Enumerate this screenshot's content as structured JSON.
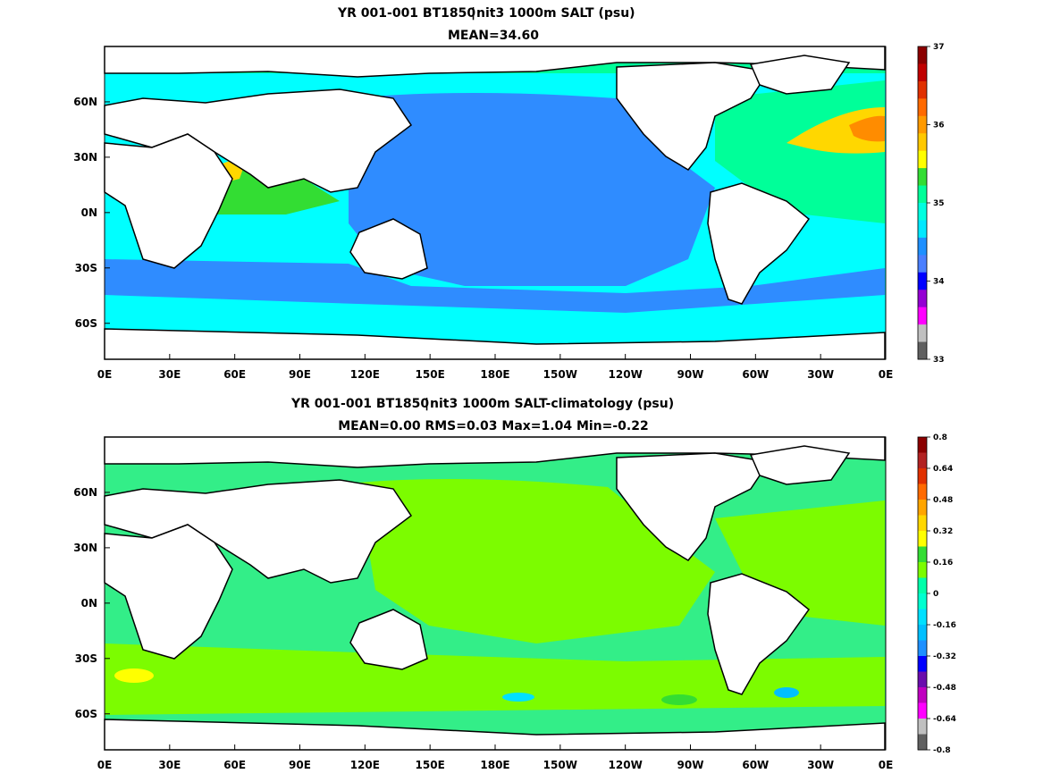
{
  "panels": [
    {
      "title": "YR 001-001 BT1850 nit3 1000m SALT (psu)",
      "title_pre": "YR 001-001 BT1850",
      "title_post": "nit3 1000m SALT (psu)",
      "stats": "MEAN=34.60",
      "colorbar": {
        "labels": [
          "37",
          "36",
          "35",
          "34",
          "33"
        ],
        "colors": [
          "#8b0000",
          "#c00000",
          "#e03000",
          "#ff6a00",
          "#ff9a00",
          "#ffc800",
          "#ffff00",
          "#33dd33",
          "#00ff99",
          "#00ffe0",
          "#00e8ff",
          "#1e90ff",
          "#4a7fff",
          "#0000ff",
          "#9400d3",
          "#ff00ff",
          "#c0c0c0",
          "#606060"
        ]
      }
    },
    {
      "title": "YR 001-001 BT1850 nit3 1000m SALT-climatology (psu)",
      "title_pre": "YR 001-001 BT1850",
      "title_post": "nit3 1000m SALT-climatology (psu)",
      "stats": "MEAN=0.00   RMS=0.03   Max=1.04   Min=-0.22",
      "colorbar": {
        "labels": [
          "0.8",
          "0.64",
          "0.48",
          "0.32",
          "0.16",
          "0",
          "-0.16",
          "-0.32",
          "-0.48",
          "-0.64",
          "-0.8"
        ],
        "colors": [
          "#8b0000",
          "#b22222",
          "#e03000",
          "#ff6a00",
          "#ffa500",
          "#ffd700",
          "#ffff00",
          "#33dd33",
          "#7cfc00",
          "#00ffaa",
          "#00ffd0",
          "#00e0ff",
          "#00bfff",
          "#1e90ff",
          "#0000ff",
          "#6a0dad",
          "#c000c0",
          "#ff00ff",
          "#c0c0c0",
          "#606060"
        ]
      }
    }
  ],
  "axes": {
    "lon_labels": [
      "0E",
      "30E",
      "60E",
      "90E",
      "120E",
      "150E",
      "180E",
      "150W",
      "120W",
      "90W",
      "60W",
      "30W",
      "0E"
    ],
    "lat_labels": [
      "60N",
      "30N",
      "0N",
      "30S",
      "60S"
    ]
  },
  "colors": {
    "land": "#ffffff",
    "coast": "#000000",
    "ocean_top_pacific": "#2f8cff",
    "ocean_top_south": "#00ffff",
    "ocean_top_atlantic": "#00ff99",
    "ocean_top_high": "#ffd700",
    "ocean_diff_base": "#7cfc00",
    "ocean_diff_mid": "#33ee88"
  }
}
